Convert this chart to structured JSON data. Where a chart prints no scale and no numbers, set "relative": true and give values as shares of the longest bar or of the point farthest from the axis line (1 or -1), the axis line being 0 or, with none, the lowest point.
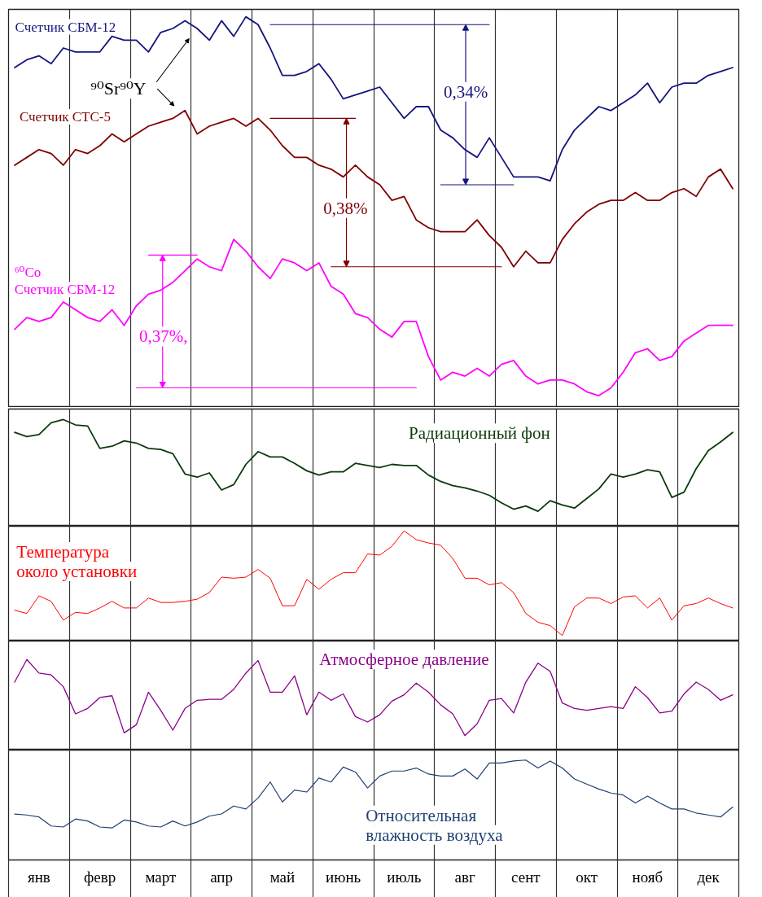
{
  "chart_data": [
    {
      "type": "line",
      "relative": true,
      "tick_labels": false,
      "grid": "x",
      "categories": [
        null,
        null,
        null,
        null,
        null,
        null,
        null,
        null,
        null,
        null,
        null,
        null,
        null,
        null,
        null,
        null,
        null,
        null,
        null,
        null,
        null,
        null,
        null,
        null,
        null,
        null,
        null,
        null,
        null,
        null,
        null,
        null,
        null,
        null,
        null,
        null,
        null,
        null,
        null,
        null,
        null,
        null,
        null,
        null,
        null,
        null,
        null,
        null,
        null,
        null,
        null,
        null,
        null,
        null,
        null,
        null,
        null,
        null,
        null,
        null
      ],
      "annotations": [
        "⁹⁰Sr⁹⁰Y",
        "0,34%",
        "0,38%",
        "0,37%,"
      ],
      "series": [
        {
          "name": "Счетчик СБМ-12",
          "color": "#14147f",
          "values": [
            0.87,
            0.89,
            0.9,
            0.88,
            0.92,
            0.91,
            0.91,
            0.91,
            0.95,
            0.94,
            0.94,
            0.91,
            0.96,
            0.97,
            0.99,
            0.97,
            0.94,
            0.99,
            0.95,
            1.0,
            0.98,
            0.92,
            0.85,
            0.85,
            0.86,
            0.88,
            0.84,
            0.79,
            0.8,
            0.81,
            0.82,
            0.78,
            0.74,
            0.77,
            0.77,
            0.71,
            0.69,
            0.66,
            0.64,
            0.69,
            0.64,
            0.59,
            0.59,
            0.59,
            0.58,
            0.66,
            0.71,
            0.74,
            0.77,
            0.76,
            0.78,
            0.8,
            0.83,
            0.78,
            0.82,
            0.83,
            0.83,
            0.85,
            0.86,
            0.87
          ]
        },
        {
          "name": "Счетчик СТС-5",
          "color": "#800000",
          "values": [
            0.62,
            0.64,
            0.66,
            0.65,
            0.62,
            0.66,
            0.65,
            0.67,
            0.7,
            0.68,
            0.7,
            0.72,
            0.73,
            0.74,
            0.76,
            0.7,
            0.72,
            0.73,
            0.74,
            0.72,
            0.74,
            0.71,
            0.67,
            0.64,
            0.64,
            0.62,
            0.61,
            0.59,
            0.62,
            0.59,
            0.57,
            0.53,
            0.54,
            0.48,
            0.46,
            0.45,
            0.45,
            0.45,
            0.48,
            0.44,
            0.41,
            0.36,
            0.4,
            0.37,
            0.37,
            0.43,
            0.47,
            0.5,
            0.52,
            0.53,
            0.53,
            0.55,
            0.53,
            0.53,
            0.55,
            0.56,
            0.54,
            0.59,
            0.61,
            0.56
          ]
        },
        {
          "name": "⁶⁰Co\nСчетчик СБМ-12",
          "color": "#ff00ff",
          "values": [
            0.2,
            0.23,
            0.22,
            0.23,
            0.27,
            0.25,
            0.23,
            0.22,
            0.25,
            0.21,
            0.26,
            0.29,
            0.3,
            0.32,
            0.35,
            0.38,
            0.36,
            0.35,
            0.43,
            0.4,
            0.36,
            0.33,
            0.38,
            0.37,
            0.35,
            0.37,
            0.31,
            0.29,
            0.24,
            0.23,
            0.2,
            0.18,
            0.22,
            0.22,
            0.13,
            0.07,
            0.09,
            0.08,
            0.1,
            0.08,
            0.11,
            0.12,
            0.08,
            0.06,
            0.07,
            0.07,
            0.06,
            0.04,
            0.03,
            0.05,
            0.09,
            0.14,
            0.15,
            0.12,
            0.13,
            0.17,
            0.19,
            0.21,
            0.21,
            0.21
          ]
        },
        {
          "color": "#14147f",
          "values": [
            null,
            null,
            null,
            null,
            null,
            null,
            null,
            null,
            null,
            null,
            null,
            null,
            null,
            null,
            null,
            null,
            null,
            null,
            null,
            null,
            null,
            0.98,
            0.98,
            0.98,
            0.98,
            0.98,
            0.98,
            0.98,
            0.98,
            0.98,
            0.98,
            0.98,
            0.98,
            0.98,
            0.98,
            0.98,
            0.98,
            0.98,
            0.98,
            0.98,
            null,
            null,
            null,
            null,
            null,
            null,
            null,
            null,
            null,
            null,
            null,
            null,
            null,
            null,
            null,
            null,
            null,
            null,
            null,
            null
          ]
        },
        {
          "color": "#14147f",
          "values": [
            null,
            null,
            null,
            null,
            null,
            null,
            null,
            null,
            null,
            null,
            null,
            null,
            null,
            null,
            null,
            null,
            null,
            null,
            null,
            null,
            null,
            null,
            null,
            null,
            null,
            null,
            null,
            null,
            null,
            null,
            null,
            null,
            null,
            null,
            null,
            0.57,
            0.57,
            0.57,
            0.57,
            0.57,
            0.57,
            0.57,
            null,
            null,
            null,
            null,
            null,
            null,
            null,
            null,
            null,
            null,
            null,
            null,
            null,
            null,
            null,
            null,
            null,
            null
          ]
        },
        {
          "color": "#800000",
          "values": [
            null,
            null,
            null,
            null,
            null,
            null,
            null,
            null,
            null,
            null,
            null,
            null,
            null,
            null,
            null,
            null,
            null,
            null,
            null,
            null,
            null,
            0.74,
            0.74,
            0.74,
            0.74,
            0.74,
            0.74,
            0.74,
            0.74,
            null,
            null,
            null,
            null,
            null,
            null,
            null,
            null,
            null,
            null,
            null,
            null,
            null,
            null,
            null,
            null,
            null,
            null,
            null,
            null,
            null,
            null,
            null,
            null,
            null,
            null,
            null,
            null,
            null,
            null,
            null
          ]
        },
        {
          "color": "#800000",
          "values": [
            null,
            null,
            null,
            null,
            null,
            null,
            null,
            null,
            null,
            null,
            null,
            null,
            null,
            null,
            null,
            null,
            null,
            null,
            null,
            null,
            null,
            null,
            null,
            null,
            null,
            null,
            0.36,
            0.36,
            0.36,
            0.36,
            0.36,
            0.36,
            0.36,
            0.36,
            0.36,
            0.36,
            0.36,
            0.36,
            0.36,
            0.36,
            0.36,
            null,
            null,
            null,
            null,
            null,
            null,
            null,
            null,
            null,
            null,
            null,
            null,
            null,
            null,
            null,
            null,
            null,
            null,
            null
          ]
        },
        {
          "color": "#ff00ff",
          "values": [
            null,
            null,
            null,
            null,
            null,
            null,
            null,
            null,
            null,
            null,
            null,
            0.39,
            0.39,
            0.39,
            0.39,
            0.39,
            null,
            null,
            null,
            null,
            null,
            null,
            null,
            null,
            null,
            null,
            null,
            null,
            null,
            null,
            null,
            null,
            null,
            null,
            null,
            null,
            null,
            null,
            null,
            null,
            null,
            null,
            null,
            null,
            null,
            null,
            null,
            null,
            null,
            null,
            null,
            null,
            null,
            null,
            null,
            null,
            null,
            null,
            null,
            null
          ]
        },
        {
          "color": "#ff00ff",
          "values": [
            null,
            null,
            null,
            null,
            null,
            null,
            null,
            null,
            null,
            null,
            0.05,
            0.05,
            0.05,
            0.05,
            0.05,
            0.05,
            0.05,
            0.05,
            0.05,
            0.05,
            0.05,
            0.05,
            0.05,
            0.05,
            0.05,
            0.05,
            0.05,
            0.05,
            0.05,
            0.05,
            0.05,
            0.05,
            0.05,
            0.05,
            null,
            null,
            null,
            null,
            null,
            null,
            null,
            null,
            null,
            null,
            null,
            null,
            null,
            null,
            null,
            null,
            null,
            null,
            null,
            null,
            null,
            null,
            null,
            null,
            null,
            null
          ]
        }
      ]
    },
    {
      "type": "line",
      "relative": true,
      "tick_labels": false,
      "grid": "x",
      "categories": [
        null,
        null,
        null,
        null,
        null,
        null,
        null,
        null,
        null,
        null,
        null,
        null,
        null,
        null,
        null,
        null,
        null,
        null,
        null,
        null,
        null,
        null,
        null,
        null,
        null,
        null,
        null,
        null,
        null,
        null,
        null,
        null,
        null,
        null,
        null,
        null,
        null,
        null,
        null,
        null,
        null,
        null,
        null,
        null,
        null,
        null,
        null,
        null,
        null,
        null,
        null,
        null,
        null,
        null,
        null,
        null,
        null,
        null,
        null,
        null
      ],
      "series": [
        {
          "name": "Радиационный фон",
          "color": "#0b3a0b",
          "values": [
            0.88,
            0.84,
            0.86,
            0.97,
            1.0,
            0.95,
            0.94,
            0.73,
            0.75,
            0.8,
            0.78,
            0.73,
            0.72,
            0.68,
            0.49,
            0.46,
            0.5,
            0.34,
            0.39,
            0.58,
            0.7,
            0.65,
            0.65,
            0.59,
            0.52,
            0.48,
            0.51,
            0.51,
            0.59,
            0.57,
            0.55,
            0.58,
            0.57,
            0.57,
            0.48,
            0.42,
            0.38,
            0.36,
            0.33,
            0.29,
            0.22,
            0.16,
            0.19,
            0.14,
            0.24,
            0.2,
            0.17,
            0.26,
            0.35,
            0.49,
            0.46,
            0.49,
            0.53,
            0.51,
            0.27,
            0.32,
            0.54,
            0.71,
            0.79,
            0.88
          ]
        }
      ]
    },
    {
      "type": "line",
      "relative": true,
      "tick_labels": false,
      "grid": "x",
      "categories": [
        null,
        null,
        null,
        null,
        null,
        null,
        null,
        null,
        null,
        null,
        null,
        null,
        null,
        null,
        null,
        null,
        null,
        null,
        null,
        null,
        null,
        null,
        null,
        null,
        null,
        null,
        null,
        null,
        null,
        null,
        null,
        null,
        null,
        null,
        null,
        null,
        null,
        null,
        null,
        null,
        null,
        null,
        null,
        null,
        null,
        null,
        null,
        null,
        null,
        null,
        null,
        null,
        null,
        null,
        null,
        null,
        null,
        null,
        null,
        null
      ],
      "series": [
        {
          "name": "Температура\nоколо установки",
          "color": "#ff0000",
          "values": [
            0.28,
            0.25,
            0.41,
            0.36,
            0.19,
            0.26,
            0.25,
            0.3,
            0.36,
            0.3,
            0.3,
            0.39,
            0.35,
            0.35,
            0.36,
            0.38,
            0.44,
            0.58,
            0.57,
            0.58,
            0.65,
            0.57,
            0.32,
            0.32,
            0.56,
            0.47,
            0.56,
            0.62,
            0.62,
            0.79,
            0.78,
            0.86,
            1.0,
            0.92,
            0.89,
            0.87,
            0.75,
            0.57,
            0.57,
            0.51,
            0.53,
            0.44,
            0.25,
            0.17,
            0.14,
            0.05,
            0.31,
            0.39,
            0.39,
            0.34,
            0.4,
            0.41,
            0.3,
            0.39,
            0.19,
            0.32,
            0.34,
            0.39,
            0.34,
            0.3
          ]
        }
      ]
    },
    {
      "type": "line",
      "relative": true,
      "tick_labels": false,
      "grid": "x",
      "categories": [
        null,
        null,
        null,
        null,
        null,
        null,
        null,
        null,
        null,
        null,
        null,
        null,
        null,
        null,
        null,
        null,
        null,
        null,
        null,
        null,
        null,
        null,
        null,
        null,
        null,
        null,
        null,
        null,
        null,
        null,
        null,
        null,
        null,
        null,
        null,
        null,
        null,
        null,
        null,
        null,
        null,
        null,
        null,
        null,
        null,
        null,
        null,
        null,
        null,
        null,
        null,
        null,
        null,
        null,
        null,
        null,
        null,
        null,
        null,
        null
      ],
      "series": [
        {
          "name": "Атмосферное давление",
          "color": "#8b008b",
          "values": [
            0.75,
            1.0,
            0.85,
            0.83,
            0.7,
            0.4,
            0.46,
            0.58,
            0.6,
            0.19,
            0.28,
            0.64,
            0.44,
            0.22,
            0.46,
            0.55,
            0.56,
            0.56,
            0.67,
            0.85,
            0.99,
            0.64,
            0.64,
            0.82,
            0.39,
            0.64,
            0.55,
            0.62,
            0.37,
            0.31,
            0.39,
            0.54,
            0.61,
            0.74,
            0.64,
            0.5,
            0.4,
            0.16,
            0.29,
            0.55,
            0.57,
            0.41,
            0.75,
            0.96,
            0.87,
            0.52,
            0.46,
            0.44,
            0.46,
            0.48,
            0.46,
            0.7,
            0.58,
            0.41,
            0.43,
            0.62,
            0.75,
            0.67,
            0.55,
            0.61
          ]
        }
      ]
    },
    {
      "type": "line",
      "relative": true,
      "tick_labels": "x",
      "grid": "x",
      "categories": [
        null,
        null,
        "янв",
        null,
        null,
        null,
        null,
        "февр",
        null,
        null,
        null,
        null,
        "март",
        null,
        null,
        null,
        null,
        "апр",
        null,
        null,
        null,
        null,
        "май",
        null,
        null,
        null,
        null,
        "июнь",
        null,
        null,
        null,
        null,
        "июль",
        null,
        null,
        null,
        null,
        "авг",
        null,
        null,
        null,
        null,
        "сент",
        null,
        null,
        null,
        null,
        "окт",
        null,
        null,
        null,
        null,
        "нояб",
        null,
        null,
        null,
        null,
        "дек",
        null,
        null
      ],
      "series": [
        {
          "name": "Относительная\nвлажность воздуха",
          "color": "#1f4070",
          "values": [
            0.46,
            0.45,
            0.43,
            0.34,
            0.33,
            0.41,
            0.39,
            0.33,
            0.32,
            0.4,
            0.38,
            0.34,
            0.33,
            0.39,
            0.34,
            0.38,
            0.44,
            0.46,
            0.54,
            0.51,
            0.62,
            0.78,
            0.58,
            0.7,
            0.68,
            0.82,
            0.78,
            0.93,
            0.88,
            0.72,
            0.84,
            0.89,
            0.89,
            0.92,
            0.86,
            0.84,
            0.84,
            0.91,
            0.81,
            0.97,
            0.97,
            0.99,
            1.0,
            0.92,
            0.99,
            0.92,
            0.81,
            0.76,
            0.71,
            0.67,
            0.65,
            0.57,
            0.64,
            0.57,
            0.51,
            0.51,
            0.47,
            0.45,
            0.43,
            0.53
          ]
        }
      ]
    }
  ]
}
